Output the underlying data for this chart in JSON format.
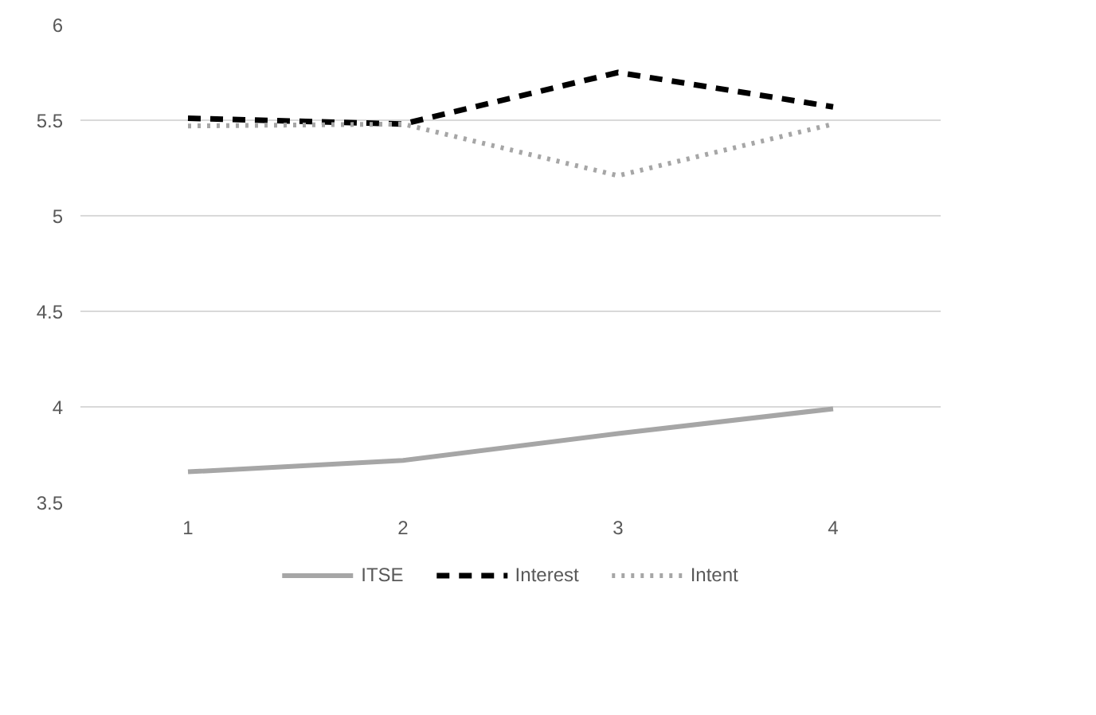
{
  "chart_data": {
    "type": "line",
    "categories": [
      "1",
      "2",
      "3",
      "4"
    ],
    "series": [
      {
        "name": "ITSE",
        "color": "#a6a6a6",
        "line_style": "solid",
        "values": [
          3.66,
          3.72,
          3.86,
          3.99
        ]
      },
      {
        "name": "Interest",
        "color": "#000000",
        "line_style": "dashed",
        "values": [
          5.51,
          5.48,
          5.75,
          5.57
        ]
      },
      {
        "name": "Intent",
        "color": "#a6a6a6",
        "line_style": "dotted",
        "values": [
          5.47,
          5.48,
          5.21,
          5.48
        ]
      }
    ],
    "ylim": [
      3.5,
      6
    ],
    "yticks": [
      3.5,
      4,
      4.5,
      5,
      5.5,
      6
    ],
    "grid": "y",
    "legend": "bottom"
  }
}
